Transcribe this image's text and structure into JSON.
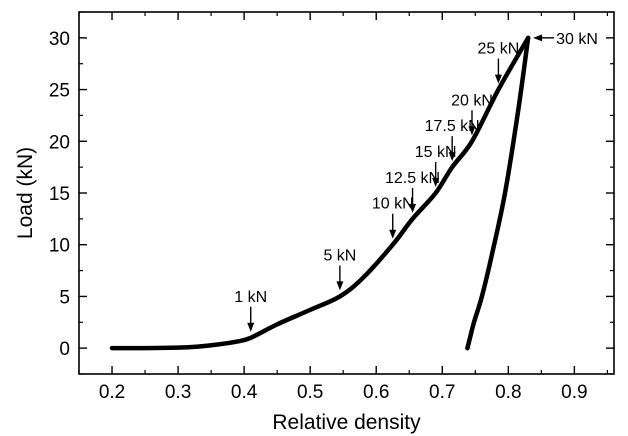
{
  "chart_data": {
    "type": "line",
    "title": "",
    "xlabel": "Relative density",
    "ylabel": "Load (kN)",
    "xlim": [
      0.15,
      0.96
    ],
    "ylim": [
      -2.5,
      32.5
    ],
    "xticks": [
      0.2,
      0.3,
      0.4,
      0.5,
      0.6,
      0.7,
      0.8,
      0.9
    ],
    "xtick_labels": [
      "0.2",
      "0.3",
      "0.4",
      "0.5",
      "0.6",
      "0.7",
      "0.8",
      "0.9"
    ],
    "yticks": [
      0,
      5,
      10,
      15,
      20,
      25,
      30
    ],
    "ytick_labels": [
      "0",
      "5",
      "10",
      "15",
      "20",
      "25",
      "30"
    ],
    "grid": false,
    "legend": "none",
    "line_color": "#000000",
    "series": [
      {
        "x": [
          0.2,
          0.25,
          0.3,
          0.33,
          0.36,
          0.39,
          0.41,
          0.45,
          0.5,
          0.545,
          0.58,
          0.625,
          0.655,
          0.69,
          0.715,
          0.745,
          0.785,
          0.83
        ],
        "y": [
          0,
          0,
          0.05,
          0.15,
          0.35,
          0.65,
          1,
          2.3,
          3.7,
          5,
          6.8,
          10,
          12.5,
          15,
          17.5,
          20,
          25,
          30
        ]
      },
      {
        "x": [
          0.83,
          0.815,
          0.795,
          0.775,
          0.76,
          0.748,
          0.742,
          0.738
        ],
        "y": [
          30,
          23,
          15,
          9,
          5,
          2.5,
          1,
          0
        ]
      }
    ],
    "annotations": [
      {
        "text": "1 kN",
        "x": 0.41,
        "y": 1,
        "label_pos": "above"
      },
      {
        "text": "5 kN",
        "x": 0.545,
        "y": 5,
        "label_pos": "above"
      },
      {
        "text": "10 kN",
        "x": 0.625,
        "y": 10,
        "label_pos": "above"
      },
      {
        "text": "12.5 kN",
        "x": 0.655,
        "y": 12.5,
        "label_pos": "above"
      },
      {
        "text": "15 kN",
        "x": 0.69,
        "y": 15,
        "label_pos": "above"
      },
      {
        "text": "17.5 kN",
        "x": 0.715,
        "y": 17.5,
        "label_pos": "above"
      },
      {
        "text": "20 kN",
        "x": 0.745,
        "y": 20,
        "label_pos": "above"
      },
      {
        "text": "25 kN",
        "x": 0.785,
        "y": 25,
        "label_pos": "above"
      },
      {
        "text": "30 kN",
        "x": 0.83,
        "y": 30,
        "label_pos": "right"
      }
    ]
  }
}
